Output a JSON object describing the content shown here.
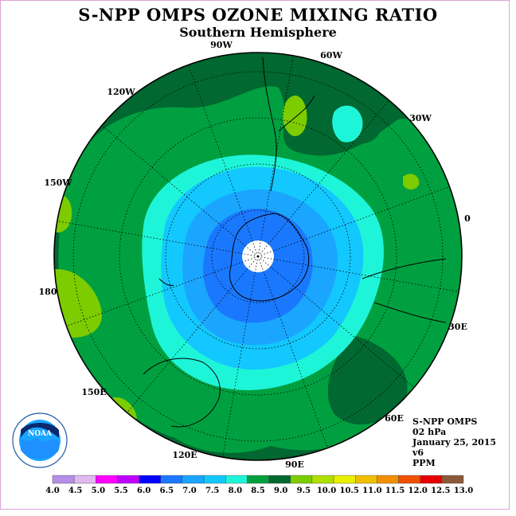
{
  "title": "S-NPP OMPS OZONE MIXING RATIO",
  "subtitle": "Southern Hemisphere",
  "info": {
    "instrument": "S-NPP OMPS",
    "pressure": "02 hPa",
    "date": "January 25, 2015",
    "version": "v6",
    "units": "PPM"
  },
  "longitude_labels": [
    "90W",
    "60W",
    "30W",
    "0",
    "30E",
    "60E",
    "90E",
    "120E",
    "150E",
    "180",
    "150W",
    "120W"
  ],
  "logo": {
    "text": "NOAA",
    "icon": "noaa-logo-icon"
  },
  "colorbar": {
    "ticks": [
      "4.0",
      "4.5",
      "5.0",
      "5.5",
      "6.0",
      "6.5",
      "7.0",
      "7.5",
      "8.0",
      "8.5",
      "9.0",
      "9.5",
      "10.0",
      "10.5",
      "11.0",
      "11.5",
      "12.0",
      "12.5",
      "13.0"
    ],
    "colors": [
      "#b58ee6",
      "#e0b8f0",
      "#ff00ff",
      "#c000ff",
      "#0000ff",
      "#1a78ff",
      "#1aa6ff",
      "#12c8ff",
      "#1ef5d8",
      "#00a040",
      "#006830",
      "#7ccc00",
      "#b0e000",
      "#e8ef00",
      "#f0c000",
      "#f09000",
      "#f05000",
      "#e60000",
      "#8a5a3a"
    ]
  },
  "map_colors": {
    "level_8_5": "#00a040",
    "level_8_0": "#1ef5d8",
    "level_7_5": "#12c8ff",
    "level_7_0": "#1aa6ff",
    "level_6_5": "#1a78ff",
    "level_9_0": "#006830",
    "level_9_5": "#7ccc00",
    "pole": "#ffffff"
  }
}
